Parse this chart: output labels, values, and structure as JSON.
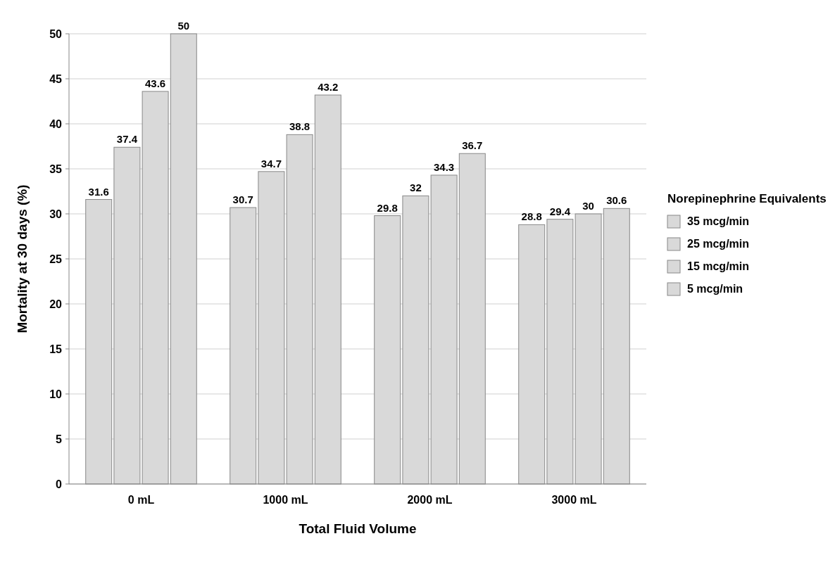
{
  "chart_data": {
    "type": "bar",
    "xlabel": "Total Fluid Volume",
    "ylabel": "Mortality at 30 days (%)",
    "legend_title": "Norepinephrine Equivalents",
    "categories": [
      "0 mL",
      "1000 mL",
      "2000 mL",
      "3000 mL"
    ],
    "series": [
      {
        "name": "5 mcg/min",
        "color": "#d9d9d9",
        "values": [
          31.6,
          30.7,
          29.8,
          28.8
        ]
      },
      {
        "name": "15 mcg/min",
        "color": "#d9d9d9",
        "values": [
          37.4,
          34.7,
          32,
          29.4
        ]
      },
      {
        "name": "25 mcg/min",
        "color": "#d9d9d9",
        "values": [
          43.6,
          38.8,
          34.3,
          30
        ]
      },
      {
        "name": "35 mcg/min",
        "color": "#d9d9d9",
        "values": [
          50,
          43.2,
          36.7,
          30.6
        ]
      }
    ],
    "ylim": [
      0,
      50
    ],
    "yticks": [
      0,
      5,
      10,
      15,
      20,
      25,
      30,
      35,
      40,
      45,
      50
    ],
    "grid": "y",
    "data_labels": true,
    "legend": "right"
  }
}
